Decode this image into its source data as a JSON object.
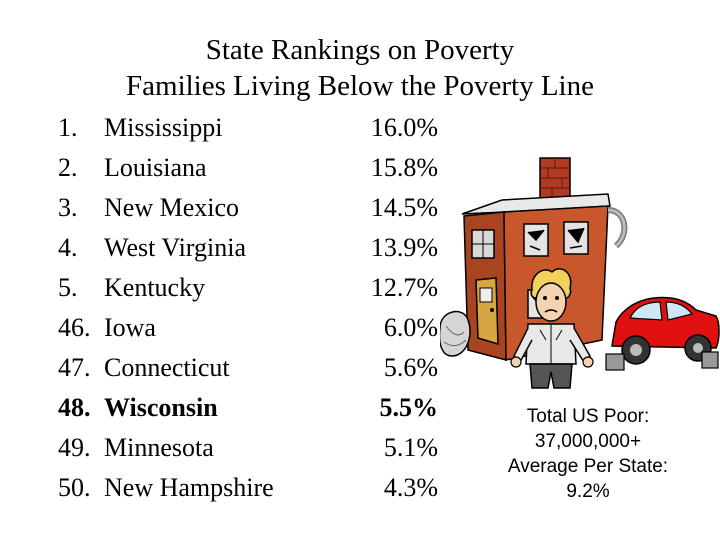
{
  "title": {
    "line1": "State Rankings on Poverty",
    "line2": "Families Living Below the Poverty Line"
  },
  "rankings": [
    {
      "rank": "1.",
      "state": "Mississippi",
      "percent": "16.0%",
      "bold": false
    },
    {
      "rank": "2.",
      "state": "Louisiana",
      "percent": "15.8%",
      "bold": false
    },
    {
      "rank": "3.",
      "state": "New Mexico",
      "percent": "14.5%",
      "bold": false
    },
    {
      "rank": "4.",
      "state": "West Virginia",
      "percent": "13.9%",
      "bold": false
    },
    {
      "rank": "5.",
      "state": "Kentucky",
      "percent": "12.7%",
      "bold": false
    },
    {
      "rank": "46.",
      "state": "Iowa",
      "percent": "6.0%",
      "bold": false
    },
    {
      "rank": "47.",
      "state": "Connecticut",
      "percent": "5.6%",
      "bold": false
    },
    {
      "rank": "48.",
      "state": "Wisconsin",
      "percent": "5.5%",
      "bold": true
    },
    {
      "rank": "49.",
      "state": "Minnesota",
      "percent": "5.1%",
      "bold": false
    },
    {
      "rank": "50.",
      "state": "New Hampshire",
      "percent": "4.3%",
      "bold": false
    }
  ],
  "summary": {
    "line1": "Total US Poor:",
    "line2": "37,000,000+",
    "line3": "Average Per State:",
    "line4": "9.2%"
  },
  "illustration": {
    "icons": [
      "dilapidated-house-icon",
      "poor-man-icon",
      "broken-car-icon",
      "trash-bag-icon"
    ],
    "colors": {
      "house_wall": "#c8572c",
      "chimney": "#b03a22",
      "car_body": "#e01010",
      "man_shirt": "#e8e8e8",
      "man_hair": "#f2d15a"
    }
  }
}
